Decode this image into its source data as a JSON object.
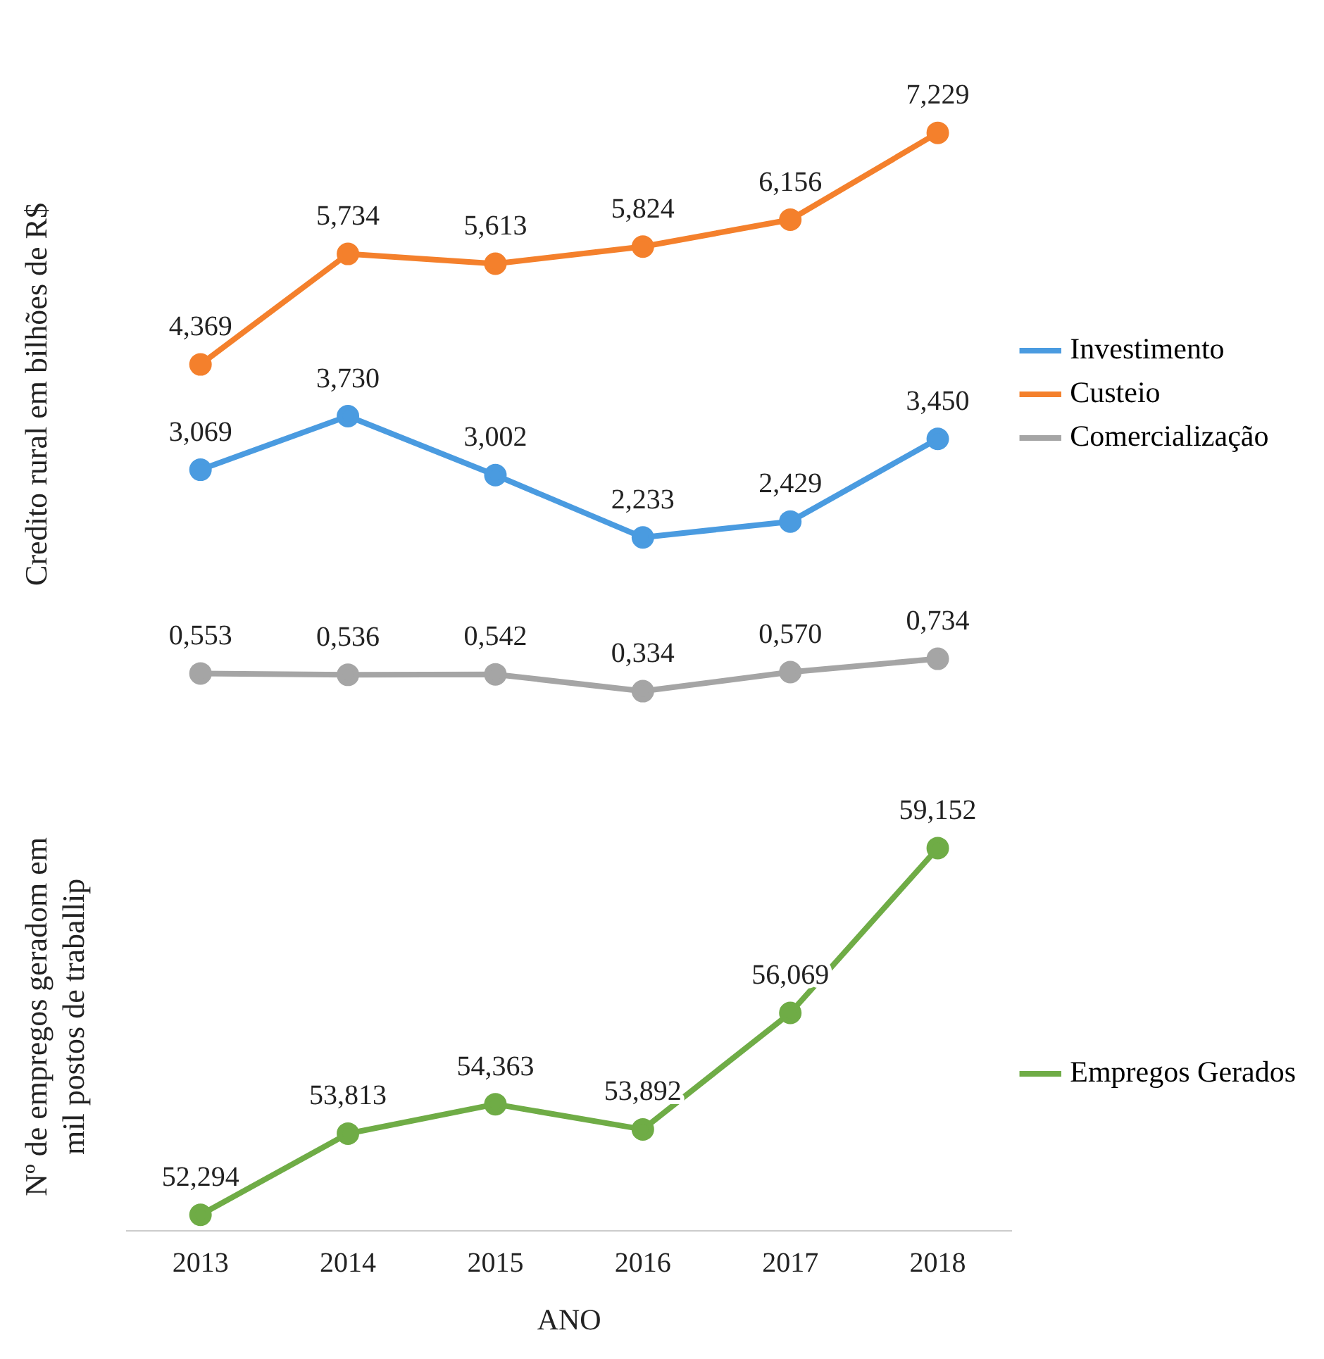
{
  "chart_data": [
    {
      "type": "line",
      "ylabel": "Credito rural em bilhões de R$",
      "categories": [
        "2013",
        "2014",
        "2015",
        "2016",
        "2017",
        "2018"
      ],
      "tick_labels": false,
      "legend": "right",
      "marker": "circle",
      "grid": false,
      "series": [
        {
          "name": "Investimento",
          "color": "#4a9be0",
          "values": [
            3.069,
            3.73,
            3.002,
            2.233,
            2.429,
            3.45
          ],
          "value_labels": [
            "3,069",
            "3,730",
            "3,002",
            "2,233",
            "2,429",
            "3,450"
          ]
        },
        {
          "name": "Custeio",
          "color": "#f4802c",
          "values": [
            4.369,
            5.734,
            5.613,
            5.824,
            6.156,
            7.229
          ],
          "value_labels": [
            "4,369",
            "5,734",
            "5,613",
            "5,824",
            "6,156",
            "7,229"
          ]
        },
        {
          "name": "Comercialização",
          "color": "#a5a5a5",
          "values": [
            0.553,
            0.536,
            0.542,
            0.334,
            0.57,
            0.734
          ],
          "value_labels": [
            "0,553",
            "0,536",
            "0,542",
            "0,334",
            "0,570",
            "0,734"
          ]
        }
      ]
    },
    {
      "type": "line",
      "ylabel": "Nº de empregos geradom em mil postos de traballip",
      "xlabel": "ANO",
      "categories": [
        "2013",
        "2014",
        "2015",
        "2016",
        "2017",
        "2018"
      ],
      "tick_labels": "x",
      "legend": "right",
      "marker": "circle",
      "grid": false,
      "series": [
        {
          "name": "Empregos Gerados",
          "color": "#6fac46",
          "values": [
            52.294,
            53.813,
            54.363,
            53.892,
            56.069,
            59.152
          ],
          "value_labels": [
            "52,294",
            "53,813",
            "54,363",
            "53,892",
            "56,069",
            "59,152"
          ]
        }
      ]
    }
  ]
}
